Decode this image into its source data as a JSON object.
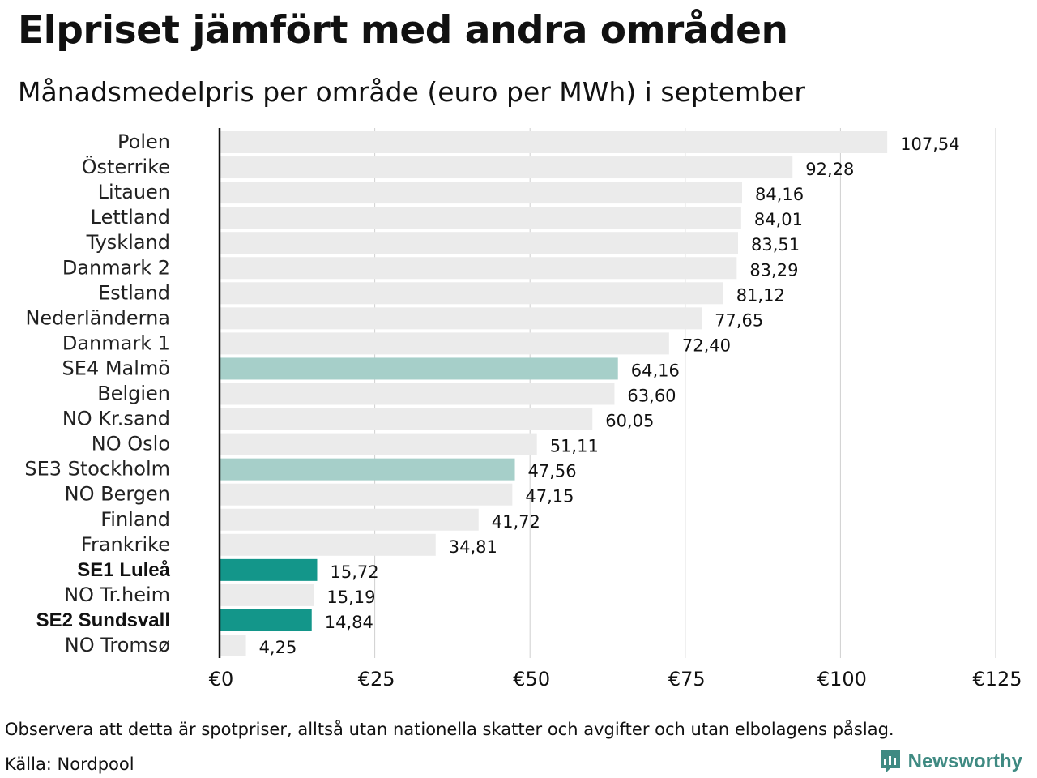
{
  "header": {
    "title": "Elpriset jämfört med andra områden",
    "subtitle": "Månadsmedelpris per område (euro per MWh) i september"
  },
  "footer": {
    "note": "Observera att detta är spotpriser, alltså utan nationella skatter och avgifter och utan elbolagens påslag.",
    "source": "Källa: Nordpool",
    "brand": "Newsworthy",
    "brand_icon": "newsworthy-logo-icon"
  },
  "colors": {
    "bar_default": "#ebebeb",
    "bar_light_highlight": "#a6cfc9",
    "bar_strong_highlight": "#13968a",
    "grid": "#cfcfcf",
    "axis": "#111111",
    "brand": "#3f8a82"
  },
  "chart_data": {
    "type": "bar",
    "orientation": "horizontal",
    "title": "Elpriset jämfört med andra områden",
    "subtitle": "Månadsmedelpris per område (euro per MWh) i september",
    "xlabel": "",
    "ylabel": "",
    "xlim": [
      0,
      125
    ],
    "x_ticks": [
      0,
      25,
      50,
      75,
      100,
      125
    ],
    "x_tick_labels": [
      "€0",
      "€25",
      "€50",
      "€75",
      "€100",
      "€125"
    ],
    "grid": true,
    "categories": [
      "Polen",
      "Österrike",
      "Litauen",
      "Lettland",
      "Tyskland",
      "Danmark  2",
      "Estland",
      "Nederländerna",
      "Danmark  1",
      "SE4  Malmö",
      "Belgien",
      "NO Kr.sand",
      "NO Oslo",
      "SE3  Stockholm",
      "NO Bergen",
      "Finland",
      "Frankrike",
      "SE1 Luleå",
      "NO Tr.heim",
      "SE2 Sundsvall",
      "NO Tromsø"
    ],
    "values": [
      107.54,
      92.28,
      84.16,
      84.01,
      83.51,
      83.29,
      81.12,
      77.65,
      72.4,
      64.16,
      63.6,
      60.05,
      51.11,
      47.56,
      47.15,
      41.72,
      34.81,
      15.72,
      15.19,
      14.84,
      4.25
    ],
    "value_labels": [
      "107,54",
      "92,28",
      "84,16",
      "84,01",
      "83,51",
      "83,29",
      "81,12",
      "77,65",
      "72,40",
      "64,16",
      "63,60",
      "60,05",
      "51,11",
      "47,56",
      "47,15",
      "41,72",
      "34,81",
      "15,72",
      "15,19",
      "14,84",
      "4,25"
    ],
    "highlight": [
      "none",
      "none",
      "none",
      "none",
      "none",
      "none",
      "none",
      "none",
      "none",
      "light",
      "none",
      "none",
      "none",
      "light",
      "none",
      "none",
      "none",
      "strong",
      "none",
      "strong",
      "none"
    ]
  }
}
